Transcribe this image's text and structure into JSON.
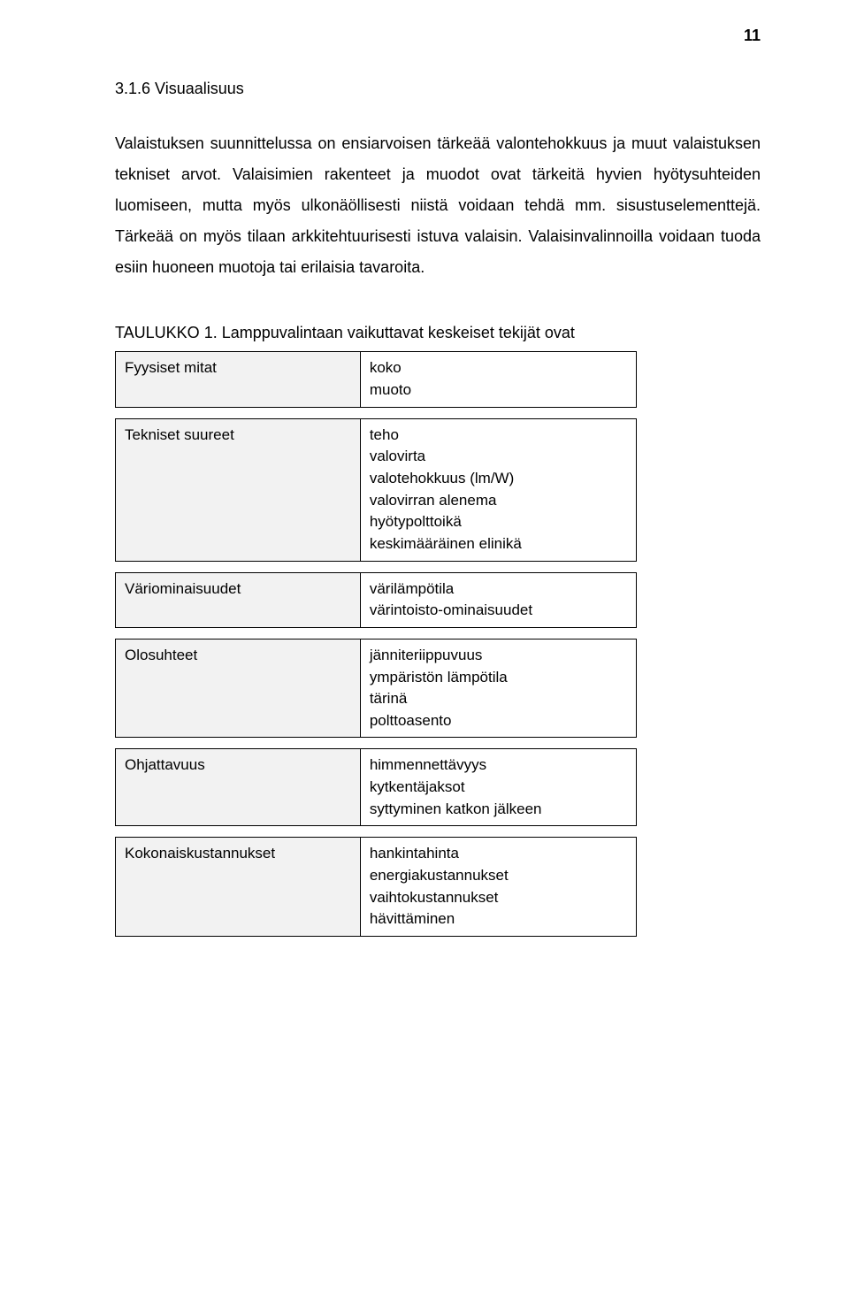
{
  "page_number": "11",
  "section_heading": "3.1.6  Visuaalisuus",
  "paragraph": "Valaistuksen suunnittelussa on ensiarvoisen tärkeää valontehokkuus ja muut valaistuksen tekniset arvot. Valaisimien rakenteet ja muodot ovat tärkeitä hyvien hyötysuhteiden luomiseen, mutta myös ulkonäöllisesti niistä voidaan tehdä mm. sisustuselementtejä. Tärkeää on myös tilaan arkkitehtuurisesti istuva valaisin. Valaisinvalinnoilla voidaan tuoda esiin huoneen muotoja tai erilaisia tavaroita.",
  "table_caption": "TAULUKKO 1. Lamppuvalintaan vaikuttavat keskeiset tekijät ovat",
  "table": {
    "rows": [
      {
        "label": "Fyysiset mitat",
        "value": "koko\nmuoto"
      },
      {
        "label": "Tekniset suureet",
        "value": "teho\nvalovirta\nvalotehokkuus (lm/W)\nvalovirran alenema\nhyötypolttoikä\nkeskimääräinen elinikä"
      },
      {
        "label": "Väriominaisuudet",
        "value": "värilämpötila\nvärintoisto-ominaisuudet"
      },
      {
        "label": "Olosuhteet",
        "value": "jänniteriippuvuus\nympäristön lämpötila\ntärinä\npolttoasento"
      },
      {
        "label": "Ohjattavuus",
        "value": "himmennettävyys\nkytkentäjaksot\nsyttyminen katkon jälkeen"
      },
      {
        "label": "Kokonaiskustannukset",
        "value": "hankintahinta\nenergiakustannukset\nvaihtokustannukset\nhävittäminen"
      }
    ]
  }
}
